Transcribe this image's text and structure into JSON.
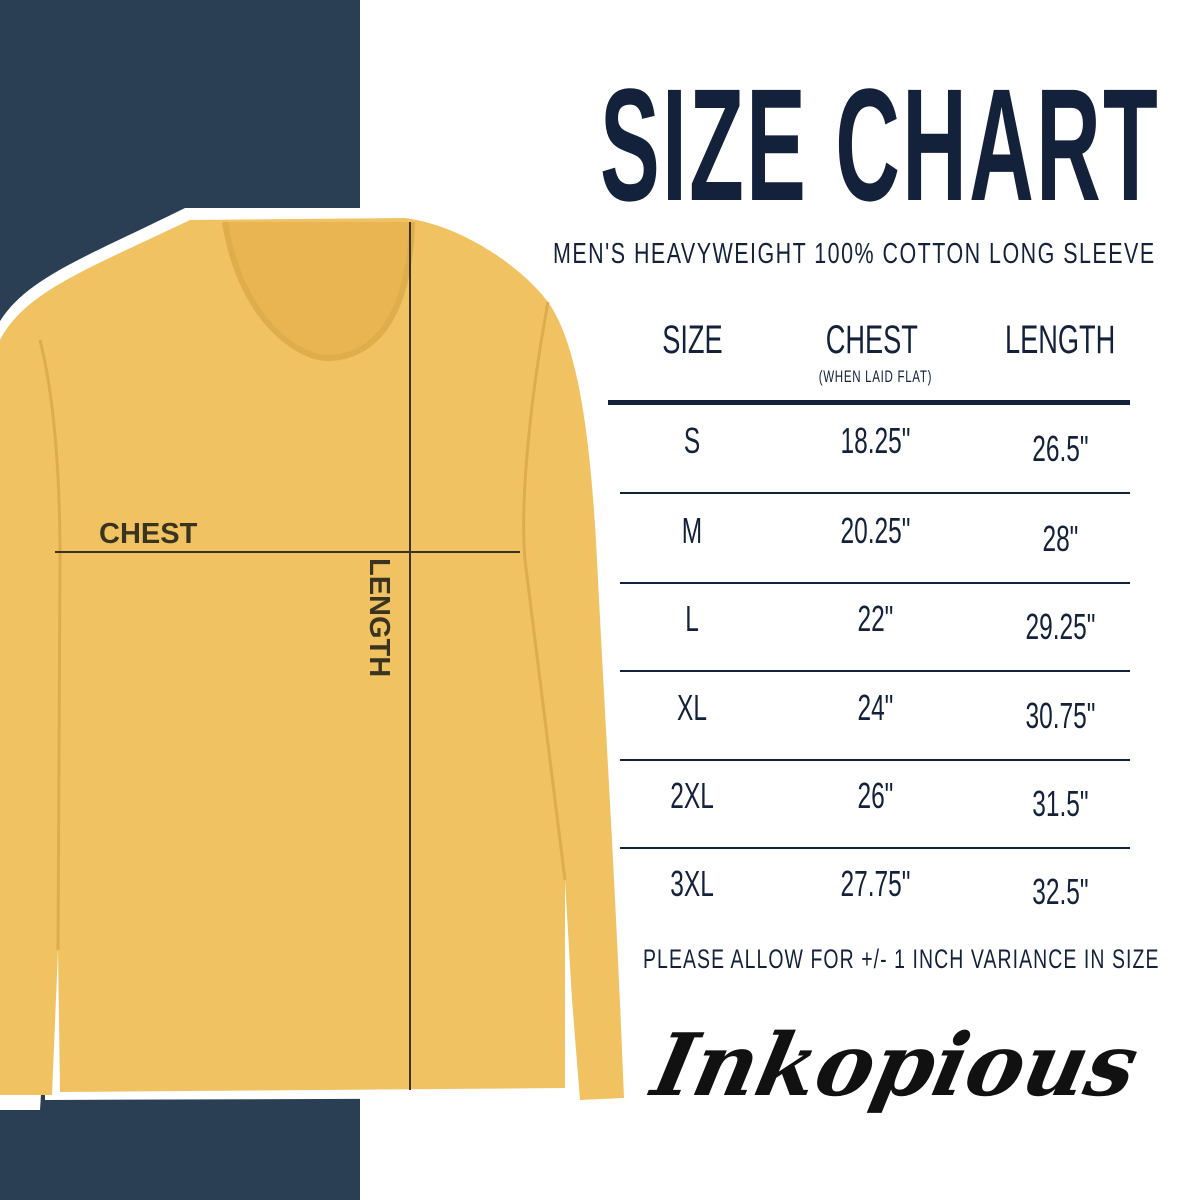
{
  "title": "SIZE CHART",
  "subtitle": "MEN'S HEAVYWEIGHT 100% COTTON LONG SLEEVE",
  "table": {
    "headers": {
      "size": "SIZE",
      "chest": "CHEST",
      "chest_note": "(WHEN LAID FLAT)",
      "length": "LENGTH"
    },
    "rows": [
      {
        "size": "S",
        "chest": "18.25\"",
        "length": "26.5\""
      },
      {
        "size": "M",
        "chest": "20.25\"",
        "length": "28\""
      },
      {
        "size": "L",
        "chest": "22\"",
        "length": "29.25\""
      },
      {
        "size": "XL",
        "chest": "24\"",
        "length": "30.75\""
      },
      {
        "size": "2XL",
        "chest": "26\"",
        "length": "31.5\""
      },
      {
        "size": "3XL",
        "chest": "27.75\"",
        "length": "32.5\""
      }
    ]
  },
  "note": "PLEASE ALLOW FOR +/- 1 INCH VARIANCE IN SIZE",
  "shirt_labels": {
    "chest": "CHEST",
    "length": "LENGTH"
  },
  "brand": "Inkopious",
  "colors": {
    "navy_panel": "#2b3f54",
    "text": "#13223a",
    "shirt": "#f1c262"
  }
}
